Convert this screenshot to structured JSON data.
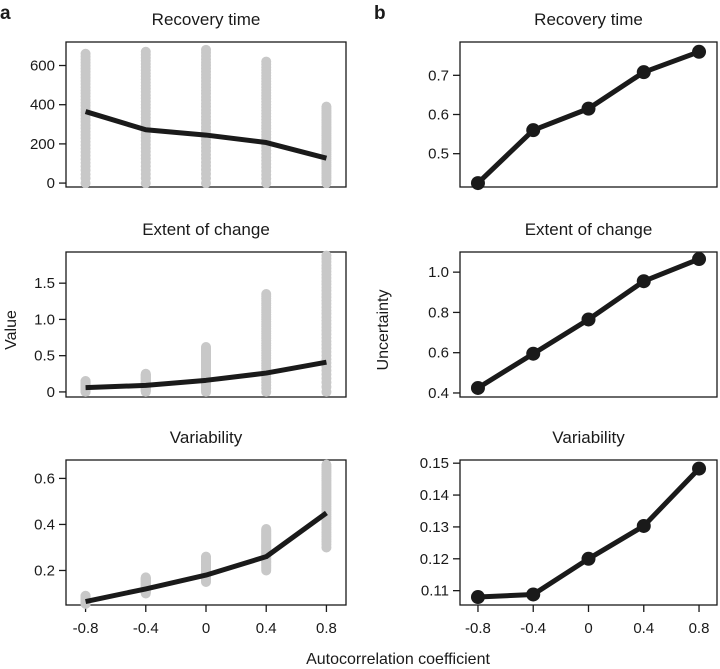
{
  "figure": {
    "panel_letters": [
      "a",
      "b"
    ],
    "xlabel": "Autocorrelation coefficient",
    "left_ylabel": "Value",
    "right_ylabel": "Uncertainty",
    "x_ticks": [
      "-0.8",
      "-0.4",
      "0",
      "0.4",
      "0.8"
    ]
  },
  "chart_data": [
    {
      "panel": "a",
      "title": "Recovery time",
      "type": "scatter",
      "x": [
        -0.8,
        -0.4,
        0,
        0.4,
        0.8
      ],
      "xlim": [
        -0.93,
        0.93
      ],
      "ylim": [
        -20,
        720
      ],
      "yticks": [
        0,
        200,
        400,
        600
      ],
      "yticklabels": [
        "0",
        "200",
        "400",
        "600"
      ],
      "mean": [
        365,
        272,
        245,
        207,
        127
      ],
      "point_ranges": [
        [
          0,
          660
        ],
        [
          0,
          670
        ],
        [
          0,
          680
        ],
        [
          0,
          620
        ],
        [
          0,
          390
        ]
      ]
    },
    {
      "panel": "a",
      "title": "Extent of change",
      "type": "scatter",
      "x": [
        -0.8,
        -0.4,
        0,
        0.4,
        0.8
      ],
      "xlim": [
        -0.93,
        0.93
      ],
      "ylim": [
        -0.07,
        1.93
      ],
      "yticks": [
        0,
        0.5,
        1.0,
        1.5
      ],
      "yticklabels": [
        "0",
        "0.5",
        "1.0",
        "1.5"
      ],
      "mean": [
        0.06,
        0.09,
        0.16,
        0.26,
        0.41
      ],
      "point_ranges": [
        [
          0,
          0.15
        ],
        [
          0,
          0.25
        ],
        [
          0,
          0.62
        ],
        [
          0,
          1.35
        ],
        [
          0,
          1.88
        ]
      ]
    },
    {
      "panel": "a",
      "title": "Variability",
      "type": "scatter",
      "x": [
        -0.8,
        -0.4,
        0,
        0.4,
        0.8
      ],
      "xlim": [
        -0.93,
        0.93
      ],
      "ylim": [
        0.05,
        0.68
      ],
      "yticks": [
        0.2,
        0.4,
        0.6
      ],
      "yticklabels": [
        "0.2",
        "0.4",
        "0.6"
      ],
      "mean": [
        0.065,
        0.12,
        0.18,
        0.26,
        0.45
      ],
      "point_ranges": [
        [
          0.055,
          0.09
        ],
        [
          0.1,
          0.17
        ],
        [
          0.15,
          0.26
        ],
        [
          0.2,
          0.38
        ],
        [
          0.3,
          0.66
        ]
      ]
    },
    {
      "panel": "b",
      "title": "Recovery time",
      "type": "line",
      "x": [
        -0.8,
        -0.4,
        0,
        0.4,
        0.8
      ],
      "xlim": [
        -0.93,
        0.93
      ],
      "ylim": [
        0.415,
        0.785
      ],
      "yticks": [
        0.5,
        0.6,
        0.7
      ],
      "yticklabels": [
        "0.5",
        "0.6",
        "0.7"
      ],
      "values": [
        0.425,
        0.56,
        0.615,
        0.708,
        0.76
      ]
    },
    {
      "panel": "b",
      "title": "Extent of change",
      "type": "line",
      "x": [
        -0.8,
        -0.4,
        0,
        0.4,
        0.8
      ],
      "xlim": [
        -0.93,
        0.93
      ],
      "ylim": [
        0.38,
        1.1
      ],
      "yticks": [
        0.4,
        0.6,
        0.8,
        1.0
      ],
      "yticklabels": [
        "0.4",
        "0.6",
        "0.8",
        "1.0"
      ],
      "values": [
        0.425,
        0.595,
        0.765,
        0.955,
        1.065
      ]
    },
    {
      "panel": "b",
      "title": "Variability",
      "type": "line",
      "x": [
        -0.8,
        -0.4,
        0,
        0.4,
        0.8
      ],
      "xlim": [
        -0.93,
        0.93
      ],
      "ylim": [
        0.1055,
        0.151
      ],
      "yticks": [
        0.11,
        0.12,
        0.13,
        0.14,
        0.15
      ],
      "yticklabels": [
        "0.11",
        "0.12",
        "0.13",
        "0.14",
        "0.15"
      ],
      "values": [
        0.108,
        0.1088,
        0.12,
        0.1303,
        0.1483
      ]
    }
  ]
}
